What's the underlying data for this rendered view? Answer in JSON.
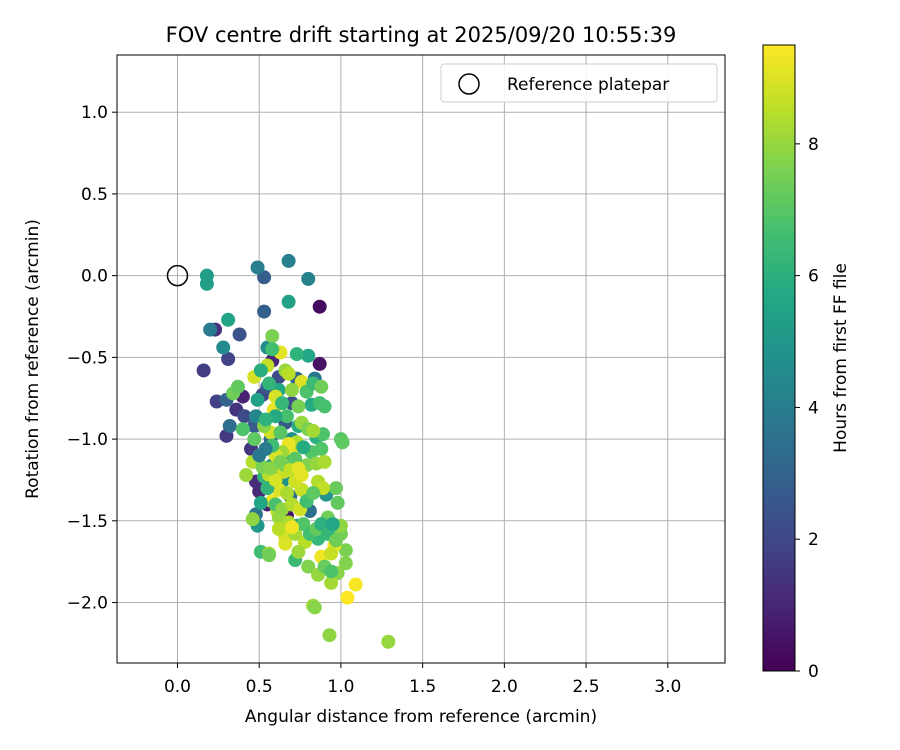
{
  "chart_data": {
    "type": "scatter",
    "title": "FOV centre drift starting at 2025/09/20 10:55:39",
    "xlabel": "Angular distance from reference (arcmin)",
    "ylabel": "Rotation from reference (arcmin)",
    "xlim": [
      -0.37,
      3.35
    ],
    "ylim": [
      -2.37,
      1.35
    ],
    "xticks": [
      0.0,
      0.5,
      1.0,
      1.5,
      2.0,
      2.5,
      3.0
    ],
    "xtick_labels": [
      "0.0",
      "0.5",
      "1.0",
      "1.5",
      "2.0",
      "2.5",
      "3.0"
    ],
    "yticks": [
      1.0,
      0.5,
      0.0,
      -0.5,
      -1.0,
      -1.5,
      -2.0
    ],
    "ytick_labels": [
      "1.0",
      "0.5",
      "0.0",
      "−0.5",
      "−1.0",
      "−1.5",
      "−2.0"
    ],
    "grid": true,
    "legend": {
      "position": "top-right",
      "entries": [
        "Reference platepar"
      ]
    },
    "reference_point": {
      "x": 0.0,
      "y": 0.0
    },
    "colorbar": {
      "label": "Hours from first FF file",
      "range": [
        0,
        9.5
      ],
      "ticks": [
        0,
        2,
        4,
        6,
        8
      ],
      "tick_labels": [
        "0",
        "2",
        "4",
        "6",
        "8"
      ],
      "colormap": "viridis"
    },
    "points": [
      [
        0.87,
        -0.19,
        0.3
      ],
      [
        0.87,
        -0.54,
        0.5
      ],
      [
        0.67,
        -1.47,
        0.6
      ],
      [
        0.55,
        -1.4,
        0.8
      ],
      [
        0.4,
        -0.74,
        0.9
      ],
      [
        0.58,
        -0.52,
        1.0
      ],
      [
        0.5,
        -1.32,
        1.1
      ],
      [
        0.48,
        -1.26,
        1.2
      ],
      [
        0.23,
        -0.33,
        1.3
      ],
      [
        0.36,
        -0.82,
        1.4
      ],
      [
        0.45,
        -1.06,
        1.5
      ],
      [
        0.3,
        -0.98,
        1.6
      ],
      [
        0.16,
        -0.58,
        1.7
      ],
      [
        0.24,
        -0.77,
        1.8
      ],
      [
        0.31,
        -0.51,
        1.9
      ],
      [
        0.52,
        -0.73,
        2.0
      ],
      [
        0.41,
        -0.86,
        2.1
      ],
      [
        0.62,
        -0.62,
        2.2
      ],
      [
        0.7,
        -0.78,
        2.3
      ],
      [
        0.38,
        -0.36,
        2.4
      ],
      [
        0.55,
        -0.68,
        2.5
      ],
      [
        0.66,
        -0.9,
        2.6
      ],
      [
        0.47,
        -0.92,
        2.7
      ],
      [
        0.53,
        -0.01,
        2.8
      ],
      [
        0.53,
        -0.22,
        2.9
      ],
      [
        0.3,
        -0.76,
        3.0
      ],
      [
        0.73,
        -0.63,
        3.1
      ],
      [
        0.57,
        -1.0,
        3.2
      ],
      [
        0.69,
        -1.35,
        3.3
      ],
      [
        0.32,
        -0.92,
        3.4
      ],
      [
        0.81,
        -1.44,
        3.5
      ],
      [
        0.48,
        -1.46,
        3.6
      ],
      [
        0.63,
        -1.24,
        3.7
      ],
      [
        0.84,
        -0.63,
        3.8
      ],
      [
        0.2,
        -0.33,
        3.9
      ],
      [
        0.49,
        0.05,
        4.0
      ],
      [
        0.68,
        0.09,
        4.1
      ],
      [
        0.8,
        -0.02,
        4.2
      ],
      [
        0.48,
        -0.86,
        4.3
      ],
      [
        0.58,
        -1.16,
        4.4
      ],
      [
        0.28,
        -0.44,
        4.5
      ],
      [
        0.55,
        -0.44,
        4.6
      ],
      [
        0.7,
        -1.0,
        4.7
      ],
      [
        0.65,
        -1.25,
        4.8
      ],
      [
        0.91,
        -1.34,
        4.9
      ],
      [
        0.49,
        -1.53,
        5.0
      ],
      [
        0.73,
        -1.53,
        5.1
      ],
      [
        0.18,
        0.0,
        5.2
      ],
      [
        0.18,
        -0.05,
        5.3
      ],
      [
        0.68,
        -0.16,
        5.4
      ],
      [
        0.31,
        -0.27,
        5.5
      ],
      [
        0.8,
        -0.49,
        5.6
      ],
      [
        0.62,
        -0.7,
        5.7
      ],
      [
        0.82,
        -0.79,
        5.8
      ],
      [
        0.74,
        -0.92,
        5.9
      ],
      [
        0.85,
        -0.99,
        6.0
      ],
      [
        0.7,
        -1.13,
        6.1
      ],
      [
        0.53,
        -1.23,
        6.2
      ],
      [
        0.86,
        -1.61,
        6.3
      ],
      [
        0.72,
        -1.74,
        6.4
      ],
      [
        0.51,
        -1.69,
        6.5
      ],
      [
        0.87,
        -0.78,
        6.6
      ],
      [
        0.9,
        -0.8,
        6.7
      ],
      [
        0.89,
        -0.97,
        6.8
      ],
      [
        0.88,
        -1.06,
        6.9
      ],
      [
        1.0,
        -1.0,
        7.0
      ],
      [
        1.01,
        -1.02,
        7.1
      ],
      [
        0.98,
        -1.39,
        7.2
      ],
      [
        0.97,
        -1.3,
        7.3
      ],
      [
        0.92,
        -1.48,
        7.4
      ],
      [
        1.0,
        -1.58,
        7.5
      ],
      [
        1.03,
        -1.68,
        7.6
      ],
      [
        1.03,
        -1.76,
        7.7
      ],
      [
        0.98,
        -1.82,
        7.8
      ],
      [
        0.93,
        -2.2,
        7.9
      ],
      [
        1.29,
        -2.24,
        8.0
      ],
      [
        0.83,
        -2.02,
        8.1
      ],
      [
        0.94,
        -1.88,
        8.2
      ],
      [
        0.56,
        -1.7,
        8.3
      ],
      [
        0.66,
        -1.57,
        8.4
      ],
      [
        0.78,
        -1.63,
        8.5
      ],
      [
        0.61,
        -1.44,
        8.6
      ],
      [
        0.65,
        -1.2,
        8.7
      ],
      [
        0.57,
        -0.96,
        8.8
      ],
      [
        0.6,
        -0.74,
        8.9
      ],
      [
        0.76,
        -0.65,
        9.0
      ],
      [
        0.7,
        -1.06,
        9.1
      ],
      [
        0.58,
        -1.38,
        9.2
      ],
      [
        0.88,
        -1.72,
        9.3
      ],
      [
        1.09,
        -1.89,
        9.4
      ],
      [
        1.04,
        -1.97,
        9.5
      ],
      [
        0.59,
        -0.82,
        9.2
      ],
      [
        0.63,
        -0.47,
        9.1
      ],
      [
        0.47,
        -0.62,
        8.9
      ],
      [
        0.55,
        -0.55,
        8.6
      ],
      [
        0.58,
        -0.37,
        7.6
      ],
      [
        0.53,
        -0.92,
        7.8
      ],
      [
        0.34,
        -0.72,
        7.4
      ],
      [
        0.37,
        -0.68,
        7.2
      ],
      [
        0.4,
        -0.94,
        6.8
      ],
      [
        0.47,
        -1.0,
        7.1
      ],
      [
        0.42,
        -1.22,
        8.1
      ],
      [
        0.46,
        -1.14,
        8.4
      ],
      [
        0.46,
        -1.49,
        7.9
      ],
      [
        0.56,
        -1.71,
        7.4
      ],
      [
        0.62,
        -1.48,
        8.0
      ],
      [
        0.68,
        -1.51,
        8.3
      ],
      [
        0.66,
        -1.6,
        8.8
      ],
      [
        0.72,
        -1.58,
        8.2
      ],
      [
        0.77,
        -1.52,
        6.9
      ],
      [
        0.81,
        -1.58,
        6.6
      ],
      [
        0.85,
        -1.55,
        7.2
      ],
      [
        0.8,
        -1.78,
        7.7
      ],
      [
        0.86,
        -1.83,
        8.0
      ],
      [
        0.9,
        -1.78,
        7.3
      ],
      [
        0.84,
        -2.03,
        7.8
      ],
      [
        0.96,
        -1.65,
        9.3
      ],
      [
        0.94,
        -1.7,
        8.7
      ],
      [
        1.0,
        -1.53,
        7.9
      ],
      [
        0.86,
        -1.26,
        8.4
      ],
      [
        0.89,
        -1.3,
        8.6
      ],
      [
        0.76,
        -1.31,
        8.7
      ],
      [
        0.79,
        -1.16,
        7.7
      ],
      [
        0.82,
        -1.08,
        6.9
      ],
      [
        0.73,
        -1.02,
        8.4
      ],
      [
        0.68,
        -1.03,
        9.2
      ],
      [
        0.64,
        -1.08,
        8.1
      ],
      [
        0.6,
        -1.1,
        8.9
      ],
      [
        0.56,
        -1.22,
        8.5
      ],
      [
        0.52,
        -1.17,
        7.6
      ],
      [
        0.59,
        -1.27,
        8.7
      ],
      [
        0.62,
        -1.31,
        9.0
      ],
      [
        0.67,
        -1.33,
        8.3
      ],
      [
        0.72,
        -1.26,
        8.8
      ],
      [
        0.76,
        -1.22,
        9.1
      ],
      [
        0.71,
        -1.17,
        8.2
      ],
      [
        0.66,
        -1.16,
        7.3
      ],
      [
        0.63,
        -0.96,
        7.0
      ],
      [
        0.67,
        -0.86,
        6.7
      ],
      [
        0.74,
        -0.8,
        7.5
      ],
      [
        0.79,
        -0.71,
        6.8
      ],
      [
        0.83,
        -0.66,
        6.4
      ],
      [
        0.88,
        -0.68,
        7.4
      ],
      [
        0.7,
        -0.7,
        7.9
      ],
      [
        0.64,
        -0.78,
        6.3
      ],
      [
        0.6,
        -0.86,
        5.8
      ],
      [
        0.54,
        -0.88,
        6.1
      ],
      [
        0.49,
        -0.76,
        5.4
      ],
      [
        0.56,
        -0.66,
        6.2
      ],
      [
        0.51,
        -0.58,
        5.9
      ],
      [
        0.58,
        -0.45,
        6.6
      ],
      [
        0.66,
        -0.58,
        8.0
      ],
      [
        0.68,
        -0.6,
        8.5
      ],
      [
        0.73,
        -0.48,
        6.1
      ],
      [
        0.76,
        -0.9,
        8.0
      ],
      [
        0.8,
        -0.94,
        7.6
      ],
      [
        0.83,
        -0.95,
        8.2
      ],
      [
        0.77,
        -1.05,
        5.8
      ],
      [
        0.72,
        -1.12,
        7.0
      ],
      [
        0.58,
        -1.04,
        6.5
      ],
      [
        0.54,
        -1.06,
        4.0
      ],
      [
        0.5,
        -1.1,
        3.8
      ],
      [
        0.55,
        -1.3,
        6.2
      ],
      [
        0.51,
        -1.39,
        5.6
      ],
      [
        0.6,
        -1.4,
        6.7
      ],
      [
        0.64,
        -1.43,
        7.9
      ],
      [
        0.7,
        -1.4,
        8.4
      ],
      [
        0.75,
        -1.43,
        8.8
      ],
      [
        0.79,
        -1.38,
        6.6
      ],
      [
        0.83,
        -1.33,
        7.1
      ],
      [
        0.85,
        -1.15,
        8.0
      ],
      [
        0.9,
        -1.14,
        8.3
      ],
      [
        0.88,
        -1.52,
        6.0
      ],
      [
        0.92,
        -1.58,
        6.3
      ],
      [
        0.95,
        -1.52,
        5.6
      ],
      [
        0.97,
        -1.62,
        7.4
      ],
      [
        0.94,
        -1.81,
        6.8
      ],
      [
        0.62,
        -1.55,
        8.5
      ],
      [
        0.66,
        -1.64,
        9.0
      ],
      [
        0.74,
        -1.69,
        8.1
      ],
      [
        0.7,
        -1.54,
        9.3
      ],
      [
        0.6,
        -1.25,
        8.9
      ],
      [
        0.57,
        -1.18,
        7.8
      ],
      [
        0.63,
        -1.14,
        7.6
      ],
      [
        0.69,
        -1.19,
        8.6
      ],
      [
        0.74,
        -1.18,
        9.1
      ]
    ]
  }
}
